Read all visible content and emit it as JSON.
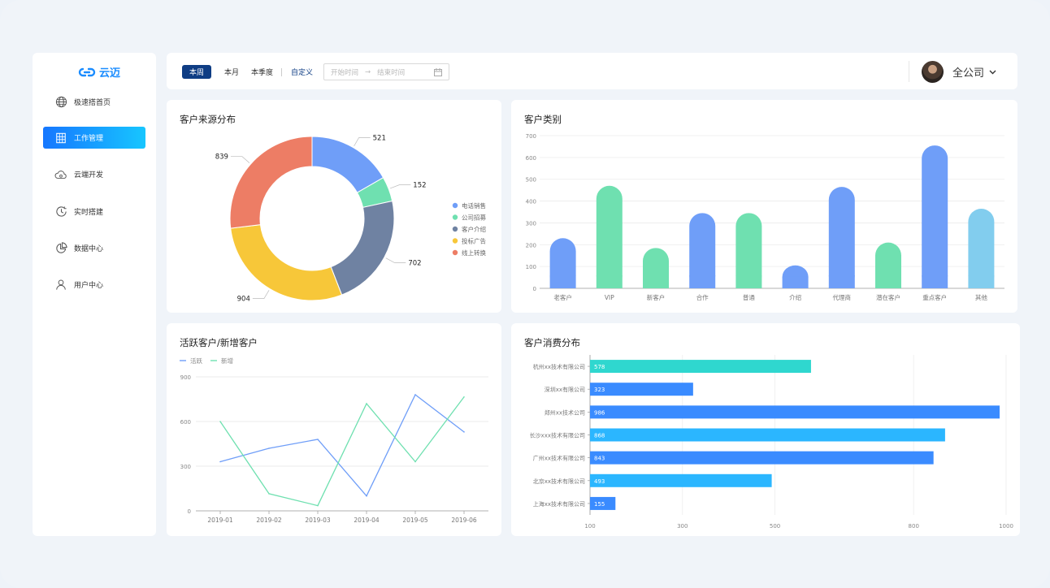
{
  "app": {
    "logo_text": "云迈"
  },
  "sidebar": {
    "items": [
      {
        "label": "极速搭首页",
        "icon": "globe-icon"
      },
      {
        "label": "工作管理",
        "icon": "building-icon",
        "active": true
      },
      {
        "label": "云端开发",
        "icon": "cloud-icon"
      },
      {
        "label": "实时搭建",
        "icon": "clock-icon"
      },
      {
        "label": "数据中心",
        "icon": "pie-icon"
      },
      {
        "label": "用户中心",
        "icon": "user-icon"
      }
    ]
  },
  "toolbar": {
    "periods": [
      "本周",
      "本月",
      "本季度"
    ],
    "custom_label": "自定义",
    "start_placeholder": "开始时间",
    "end_placeholder": "结束时间",
    "company_selector": "全公司"
  },
  "colors": {
    "accent": "#0f3d84",
    "blue": "#6f9ef8",
    "green": "#6fe0b0",
    "slate": "#6f82a2",
    "yellow": "#f7c739",
    "red": "#ed7d65"
  },
  "charts": {
    "source": {
      "title": "客户来源分布",
      "chart_data": {
        "type": "pie",
        "donut": true,
        "title": "客户来源分布",
        "slices": [
          {
            "name": "电话销售",
            "value": 521,
            "color": "#6f9ef8"
          },
          {
            "name": "公司招募",
            "value": 152,
            "color": "#6fe0b0"
          },
          {
            "name": "客户介绍",
            "value": 702,
            "color": "#6f82a2"
          },
          {
            "name": "投标广告",
            "value": 904,
            "color": "#f7c739"
          },
          {
            "name": "线上转换",
            "value": 839,
            "color": "#ed7d65"
          }
        ],
        "legend": "right"
      }
    },
    "category": {
      "title": "客户类别",
      "chart_data": {
        "type": "bar",
        "title": "客户类别",
        "categories": [
          "老客户",
          "VIP",
          "新客户",
          "合作",
          "普通",
          "介绍",
          "代理商",
          "潜在客户",
          "重点客户",
          "其他"
        ],
        "values": [
          230,
          470,
          185,
          345,
          345,
          105,
          465,
          210,
          655,
          365
        ],
        "colors": [
          "#6f9ef8",
          "#6fe0b0",
          "#6fe0b0",
          "#6f9ef8",
          "#6fe0b0",
          "#6f9ef8",
          "#6f9ef8",
          "#6fe0b0",
          "#6f9ef8",
          "#82cdee"
        ],
        "ylim": [
          0,
          700
        ],
        "yticks": [
          0,
          100,
          200,
          300,
          400,
          500,
          600,
          700
        ]
      }
    },
    "activity": {
      "title": "活跃客户/新增客户",
      "chart_data": {
        "type": "line",
        "title": "活跃客户/新增客户",
        "x": [
          "2019-01",
          "2019-02",
          "2019-03",
          "2019-04",
          "2019-05",
          "2019-06"
        ],
        "series": [
          {
            "name": "活跃",
            "values": [
              330,
              420,
              480,
              100,
              780,
              530
            ],
            "color": "#6f9ef8"
          },
          {
            "name": "新增",
            "values": [
              600,
              115,
              35,
              720,
              330,
              765
            ],
            "color": "#6fe0b0"
          }
        ],
        "ylim": [
          0,
          900
        ],
        "yticks": [
          0,
          300,
          600,
          900
        ],
        "legend": "top-left"
      }
    },
    "spending": {
      "title": "客户消费分布",
      "chart_data": {
        "type": "bar",
        "orientation": "horizontal",
        "title": "客户消费分布",
        "categories": [
          "杭州xx技术有限公司",
          "深圳xx有限公司",
          "郑州xx技术公司",
          "长沙xxx技术有限公司",
          "广州xx技术有限公司",
          "北京xx技术有限公司",
          "上海xx技术有限公司"
        ],
        "values": [
          578,
          323,
          986,
          868,
          843,
          493,
          155
        ],
        "colors": [
          "#2fd7cf",
          "#3a8bff",
          "#3a8bff",
          "#2bb6ff",
          "#3a8bff",
          "#2bb6ff",
          "#3a8bff"
        ],
        "xlim": [
          100,
          1000
        ],
        "xticks": [
          100,
          300,
          500,
          800,
          1000
        ]
      }
    }
  }
}
